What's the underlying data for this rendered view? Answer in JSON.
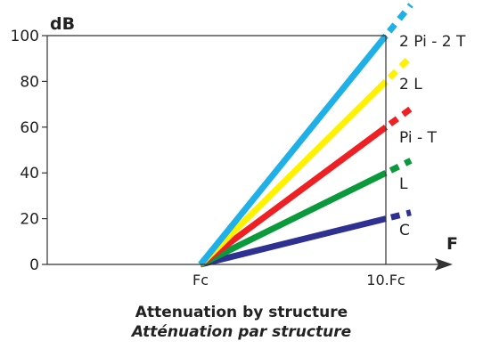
{
  "chart_data": {
    "type": "line",
    "title": "Attenuation by structure",
    "subtitle": "Atténuation par structure",
    "ylabel": "dB",
    "xlabel": "F",
    "ylim": [
      0,
      100
    ],
    "yticks": [
      0,
      20,
      40,
      60,
      80,
      100
    ],
    "xticks": [
      "Fc",
      "10.Fc"
    ],
    "grid": false,
    "series": [
      {
        "name": "C",
        "color": "#2e3192",
        "x": [
          "Fc",
          "10.Fc"
        ],
        "values": [
          0,
          20
        ]
      },
      {
        "name": "L",
        "color": "#0a9a3c",
        "x": [
          "Fc",
          "10.Fc"
        ],
        "values": [
          0,
          40
        ]
      },
      {
        "name": "Pi - T",
        "color": "#ee2024",
        "x": [
          "Fc",
          "10.Fc"
        ],
        "values": [
          0,
          60
        ]
      },
      {
        "name": "2 L",
        "color": "#fff200",
        "x": [
          "Fc",
          "10.Fc"
        ],
        "values": [
          0,
          80
        ]
      },
      {
        "name": "2 Pi - 2 T",
        "color": "#1fb0e8",
        "x": [
          "Fc",
          "10.Fc"
        ],
        "values": [
          0,
          100
        ]
      }
    ]
  }
}
